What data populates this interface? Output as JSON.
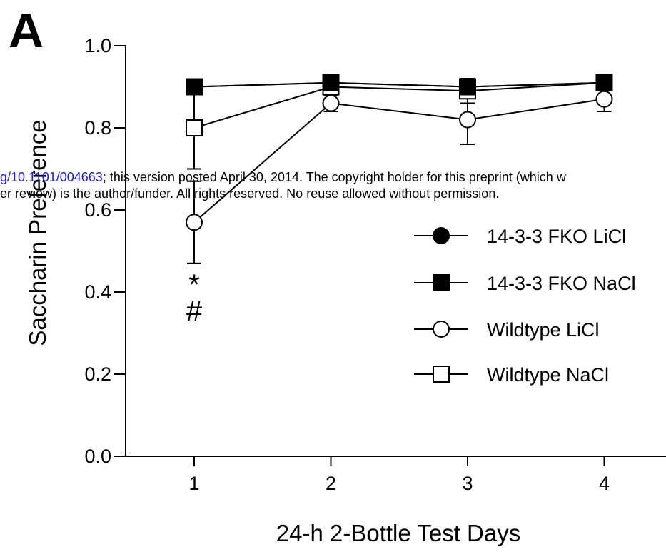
{
  "panel_label": "A",
  "watermark": {
    "line1_link": "g/10.1101/004663",
    "line1_rest": "; this version posted April 30, 2014. The copyright holder for this preprint (which w",
    "line2": "er review) is the author/funder. All rights reserved. No reuse allowed without permission."
  },
  "significance_marks": [
    "*",
    "#"
  ],
  "chart_data": {
    "type": "line",
    "xlabel": "24-h 2-Bottle Test Days",
    "ylabel": "Saccharin Preference",
    "x": [
      1,
      2,
      3,
      4
    ],
    "x_tick_labels": [
      "1",
      "2",
      "3",
      "4"
    ],
    "ylim": [
      0.0,
      1.0
    ],
    "y_ticks": [
      "0.0",
      "0.2",
      "0.4",
      "0.6",
      "0.8",
      "1.0"
    ],
    "grid": false,
    "legend_position": "right",
    "series": [
      {
        "name": "14-3-3 FKO LiCl",
        "marker": "circle",
        "filled": true,
        "values": [
          0.9,
          0.91,
          0.9,
          0.91
        ],
        "error": [
          0.0,
          0.0,
          0.0,
          0.0
        ]
      },
      {
        "name": "14-3-3 FKO NaCl",
        "marker": "square",
        "filled": true,
        "values": [
          0.9,
          0.91,
          0.9,
          0.91
        ],
        "error": [
          0.0,
          0.0,
          0.0,
          0.0
        ]
      },
      {
        "name": "Wildtype LiCl",
        "marker": "circle",
        "filled": false,
        "values": [
          0.57,
          0.86,
          0.82,
          0.87
        ],
        "error": [
          0.1,
          0.02,
          0.06,
          0.03
        ]
      },
      {
        "name": "Wildtype NaCl",
        "marker": "square",
        "filled": false,
        "values": [
          0.8,
          0.9,
          0.89,
          0.91
        ],
        "error": [
          0.1,
          0.01,
          0.03,
          0.01
        ]
      }
    ]
  }
}
